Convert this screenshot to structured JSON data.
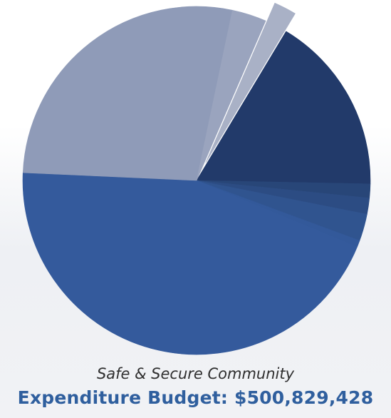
{
  "chart_data": {
    "type": "pie",
    "title": "Safe & Secure Community",
    "subtitle": "Expenditure Budget: $500,829,428",
    "slices": [
      {
        "value": 16.7,
        "color": "#223a6a",
        "exploded": false
      },
      {
        "value": 1.3,
        "color": "#284678",
        "exploded": false
      },
      {
        "value": 1.5,
        "color": "#2c4c83",
        "exploded": false
      },
      {
        "value": 2.5,
        "color": "#30548f",
        "exploded": false
      },
      {
        "value": 0.6,
        "color": "#33599a",
        "exploded": false
      },
      {
        "value": 44.5,
        "color": "#345a9c",
        "exploded": false
      },
      {
        "value": 27.6,
        "color": "#8f9bb8",
        "exploded": false
      },
      {
        "value": 3.2,
        "color": "#9aa4be",
        "exploded": false
      },
      {
        "value": 2.1,
        "color": "#a9b1c6",
        "exploded": true
      }
    ]
  }
}
